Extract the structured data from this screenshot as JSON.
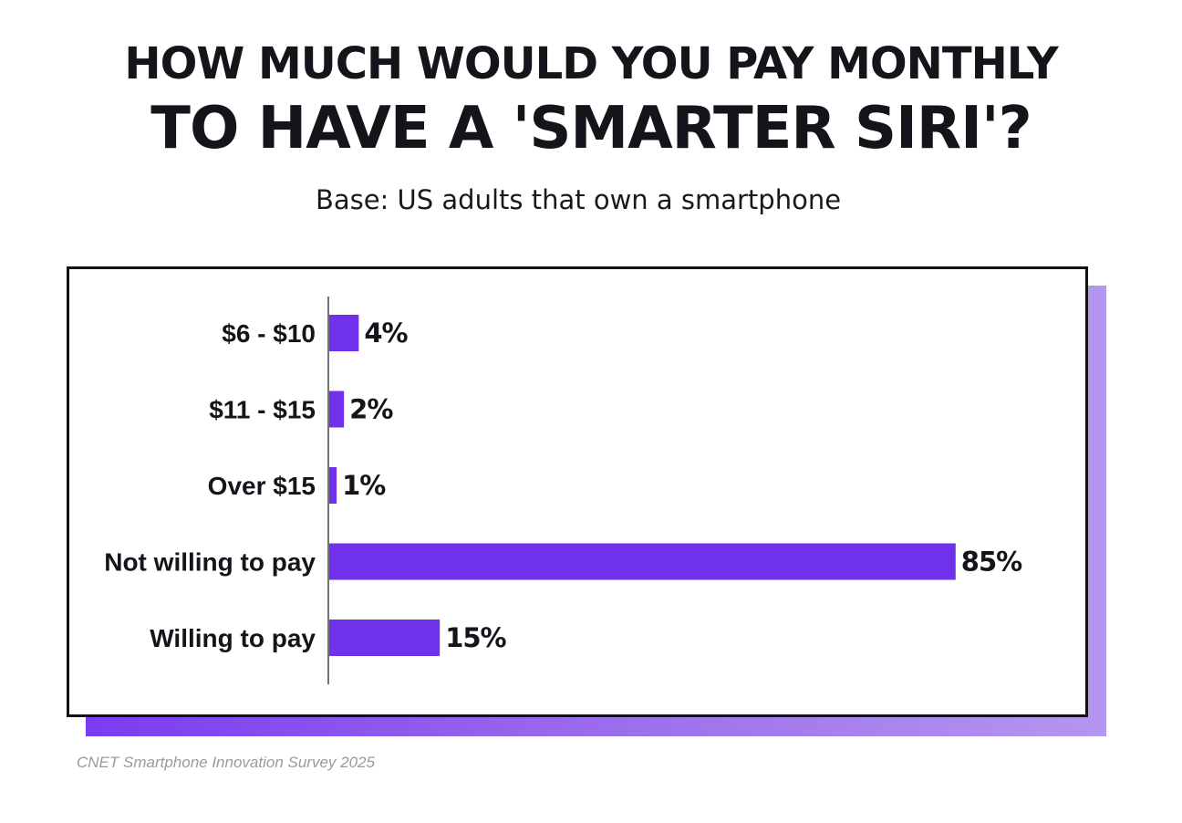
{
  "title": {
    "line1": "HOW MUCH WOULD YOU PAY MONTHLY",
    "line2": "TO HAVE A 'SMARTER SIRI'?"
  },
  "subtitle": "Base: US adults that own a smartphone",
  "source": "CNET  Smartphone Innovation Survey 2025",
  "colors": {
    "bar": "#7031ea",
    "text": "#15141a",
    "shadow_start": "#7a3cf0",
    "shadow_end": "#b497ef"
  },
  "chart_data": {
    "type": "bar",
    "orientation": "horizontal",
    "categories": [
      "$6 - $10",
      "$11 - $15",
      "Over $15",
      "Not willing to pay",
      "Willing to pay"
    ],
    "values": [
      4,
      2,
      1,
      85,
      15
    ],
    "value_labels": [
      "4%",
      "2%",
      "1%",
      "85%",
      "15%"
    ],
    "xlim": [
      0,
      100
    ],
    "grid": false,
    "legend": "none"
  }
}
